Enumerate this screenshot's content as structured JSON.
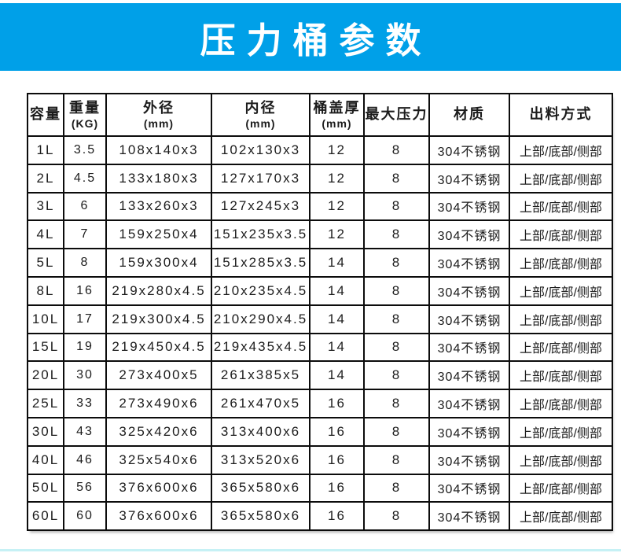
{
  "banner": {
    "title": "压力桶参数",
    "bg_color": "#00a0e8",
    "text_color": "#ffffff"
  },
  "table": {
    "columns": [
      {
        "label": "容量",
        "sub": ""
      },
      {
        "label": "重量",
        "sub": "(KG)"
      },
      {
        "label": "外径",
        "sub": "(mm)"
      },
      {
        "label": "内径",
        "sub": "(mm)"
      },
      {
        "label": "桶盖厚",
        "sub": "(mm)"
      },
      {
        "label": "最大压力",
        "sub": ""
      },
      {
        "label": "材质",
        "sub": ""
      },
      {
        "label": "出料方式",
        "sub": ""
      }
    ],
    "rows": [
      [
        "1L",
        "3.5",
        "108x140x3",
        "102x130x3",
        "12",
        "8",
        "304不锈钢",
        "上部/底部/侧部"
      ],
      [
        "2L",
        "4.5",
        "133x180x3",
        "127x170x3",
        "12",
        "8",
        "304不锈钢",
        "上部/底部/侧部"
      ],
      [
        "3L",
        "6",
        "133x260x3",
        "127x245x3",
        "12",
        "8",
        "304不锈钢",
        "上部/底部/侧部"
      ],
      [
        "4L",
        "7",
        "159x250x4",
        "151x235x3.5",
        "12",
        "8",
        "304不锈钢",
        "上部/底部/侧部"
      ],
      [
        "5L",
        "8",
        "159x300x4",
        "151x285x3.5",
        "14",
        "8",
        "304不锈钢",
        "上部/底部/侧部"
      ],
      [
        "8L",
        "16",
        "219x280x4.5",
        "210x235x4.5",
        "14",
        "8",
        "304不锈钢",
        "上部/底部/侧部"
      ],
      [
        "10L",
        "17",
        "219x300x4.5",
        "210x290x4.5",
        "14",
        "8",
        "304不锈钢",
        "上部/底部/侧部"
      ],
      [
        "15L",
        "19",
        "219x450x4.5",
        "219x435x4.5",
        "14",
        "8",
        "304不锈钢",
        "上部/底部/侧部"
      ],
      [
        "20L",
        "30",
        "273x400x5",
        "261x385x5",
        "14",
        "8",
        "304不锈钢",
        "上部/底部/侧部"
      ],
      [
        "25L",
        "33",
        "273x490x6",
        "261x470x5",
        "16",
        "8",
        "304不锈钢",
        "上部/底部/侧部"
      ],
      [
        "30L",
        "43",
        "325x420x6",
        "313x400x6",
        "16",
        "8",
        "304不锈钢",
        "上部/底部/侧部"
      ],
      [
        "40L",
        "46",
        "325x540x6",
        "313x520x6",
        "16",
        "8",
        "304不锈钢",
        "上部/底部/侧部"
      ],
      [
        "50L",
        "56",
        "376x600x6",
        "365x580x6",
        "16",
        "8",
        "304不锈钢",
        "上部/底部/侧部"
      ],
      [
        "60L",
        "60",
        "376x600x6",
        "365x580x6",
        "16",
        "8",
        "304不锈钢",
        "上部/底部/侧部"
      ]
    ]
  },
  "footer": {
    "accent_color": "#c6f1f5"
  }
}
